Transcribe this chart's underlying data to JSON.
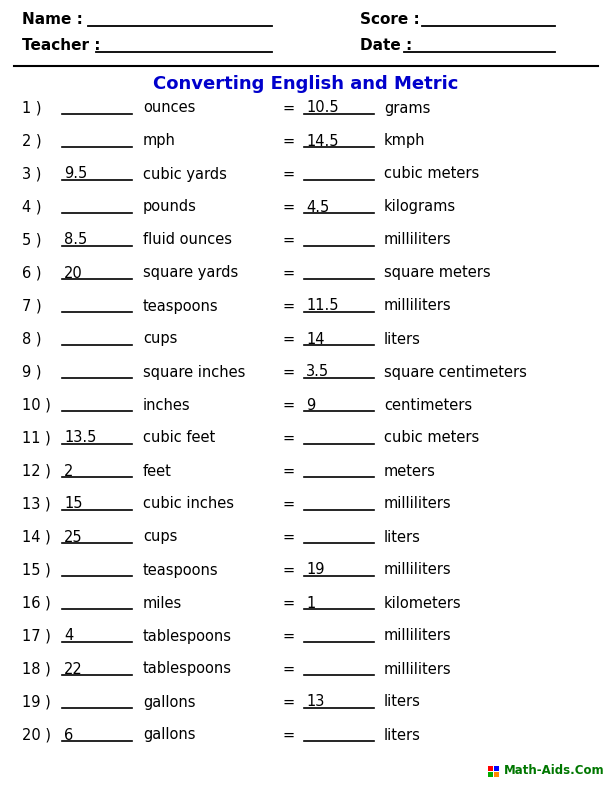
{
  "title": "Converting English and Metric",
  "title_color": "#0000CC",
  "background_color": "#FFFFFF",
  "rows": [
    {
      "num": "1",
      "left_val": "",
      "left_unit": "ounces",
      "right_val": "10.5",
      "right_unit": "grams"
    },
    {
      "num": "2",
      "left_val": "",
      "left_unit": "mph",
      "right_val": "14.5",
      "right_unit": "kmph"
    },
    {
      "num": "3",
      "left_val": "9.5",
      "left_unit": "cubic yards",
      "right_val": "",
      "right_unit": "cubic meters"
    },
    {
      "num": "4",
      "left_val": "",
      "left_unit": "pounds",
      "right_val": "4.5",
      "right_unit": "kilograms"
    },
    {
      "num": "5",
      "left_val": "8.5",
      "left_unit": "fluid ounces",
      "right_val": "",
      "right_unit": "milliliters"
    },
    {
      "num": "6",
      "left_val": "20",
      "left_unit": "square yards",
      "right_val": "",
      "right_unit": "square meters"
    },
    {
      "num": "7",
      "left_val": "",
      "left_unit": "teaspoons",
      "right_val": "11.5",
      "right_unit": "milliliters"
    },
    {
      "num": "8",
      "left_val": "",
      "left_unit": "cups",
      "right_val": "14",
      "right_unit": "liters"
    },
    {
      "num": "9",
      "left_val": "",
      "left_unit": "square inches",
      "right_val": "3.5",
      "right_unit": "square centimeters"
    },
    {
      "num": "10",
      "left_val": "",
      "left_unit": "inches",
      "right_val": "9",
      "right_unit": "centimeters"
    },
    {
      "num": "11",
      "left_val": "13.5",
      "left_unit": "cubic feet",
      "right_val": "",
      "right_unit": "cubic meters"
    },
    {
      "num": "12",
      "left_val": "2",
      "left_unit": "feet",
      "right_val": "",
      "right_unit": "meters"
    },
    {
      "num": "13",
      "left_val": "15",
      "left_unit": "cubic inches",
      "right_val": "",
      "right_unit": "milliliters"
    },
    {
      "num": "14",
      "left_val": "25",
      "left_unit": "cups",
      "right_val": "",
      "right_unit": "liters"
    },
    {
      "num": "15",
      "left_val": "",
      "left_unit": "teaspoons",
      "right_val": "19",
      "right_unit": "milliliters"
    },
    {
      "num": "16",
      "left_val": "",
      "left_unit": "miles",
      "right_val": "1",
      "right_unit": "kilometers"
    },
    {
      "num": "17",
      "left_val": "4",
      "left_unit": "tablespoons",
      "right_val": "",
      "right_unit": "milliliters"
    },
    {
      "num": "18",
      "left_val": "22",
      "left_unit": "tablespoons",
      "right_val": "",
      "right_unit": "milliliters"
    },
    {
      "num": "19",
      "left_val": "",
      "left_unit": "gallons",
      "right_val": "13",
      "right_unit": "liters"
    },
    {
      "num": "20",
      "left_val": "6",
      "left_unit": "gallons",
      "right_val": "",
      "right_unit": "liters"
    }
  ],
  "text_color": "#000000",
  "line_color": "#000000",
  "font_size": 10.5,
  "header_font_size": 11,
  "title_font_size": 13,
  "watermark": "Math-Aids.Com",
  "watermark_color": "#007700",
  "icon_colors": [
    "#FF0000",
    "#0000FF",
    "#00AA00",
    "#FF8800"
  ]
}
